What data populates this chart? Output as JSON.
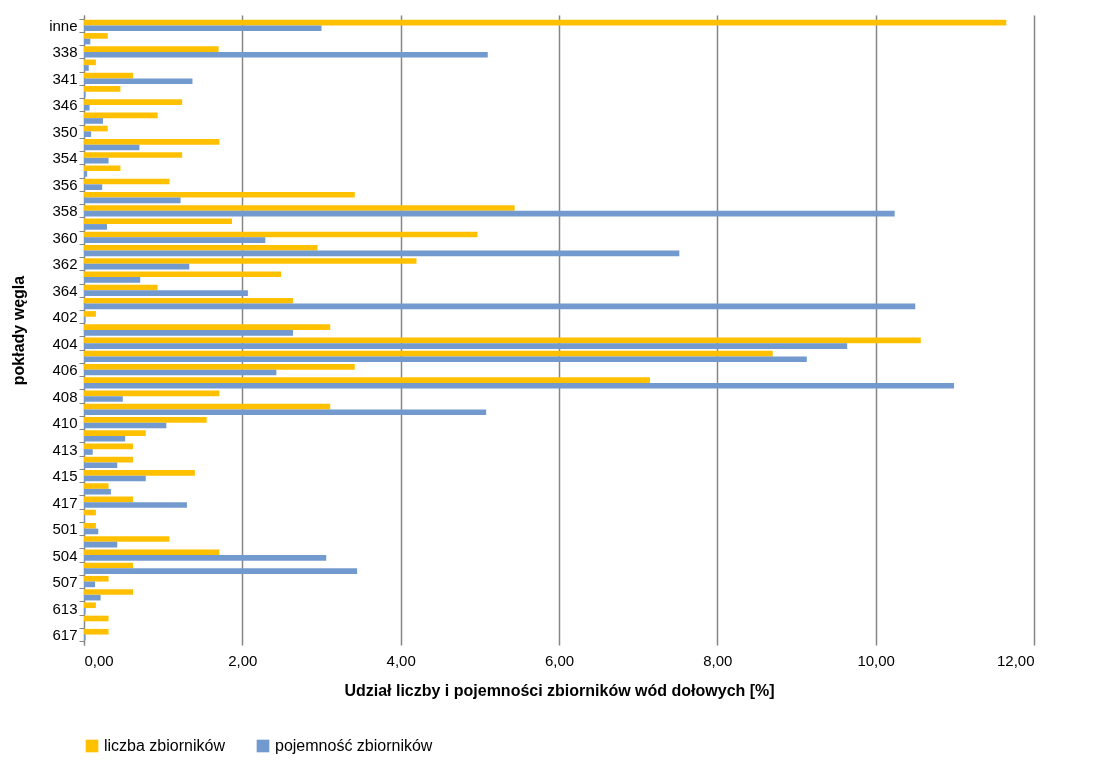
{
  "chart_data": {
    "type": "bar",
    "orientation": "horizontal",
    "xlabel": "Udział liczby i pojemności zbiorników wód dołowych [%]",
    "ylabel": "pokłady węgla",
    "categories": [
      "inne",
      null,
      "338",
      null,
      "341",
      null,
      "346",
      null,
      "350",
      null,
      "354",
      null,
      "356",
      null,
      "358",
      null,
      "360",
      null,
      "362",
      null,
      "364",
      null,
      "402",
      null,
      "404",
      null,
      "406",
      null,
      "408",
      null,
      "410",
      null,
      "413",
      null,
      "415",
      null,
      "417",
      null,
      "501",
      null,
      "504",
      null,
      "507",
      null,
      "613",
      null,
      "617"
    ],
    "series": [
      {
        "name": "liczba zbiorników",
        "color": "#ffc000",
        "values": [
          11.65,
          0.3,
          1.7,
          0.15,
          0.62,
          0.46,
          1.24,
          0.93,
          0.3,
          1.71,
          1.24,
          0.46,
          1.08,
          3.42,
          5.44,
          1.87,
          4.97,
          2.95,
          4.2,
          2.49,
          0.93,
          2.64,
          0.15,
          3.11,
          10.57,
          8.7,
          3.42,
          7.15,
          1.71,
          3.11,
          1.55,
          0.78,
          0.62,
          0.62,
          1.4,
          0.31,
          0.62,
          0.15,
          0.15,
          1.08,
          1.71,
          0.62,
          0.31,
          0.62,
          0.15,
          0.31,
          0.31
        ]
      },
      {
        "name": "pojemność zbiorników",
        "color": "#729acf",
        "values": [
          3.0,
          0.08,
          5.1,
          0.06,
          1.37,
          0.02,
          0.07,
          0.24,
          0.09,
          0.7,
          0.31,
          0.04,
          0.23,
          1.22,
          10.24,
          0.29,
          2.29,
          7.52,
          1.33,
          0.71,
          2.07,
          10.5,
          0.02,
          2.64,
          9.64,
          9.13,
          2.43,
          10.99,
          0.49,
          5.08,
          1.04,
          0.52,
          0.11,
          0.42,
          0.78,
          0.34,
          1.3,
          0.01,
          0.18,
          0.42,
          3.06,
          3.45,
          0.14,
          0.21,
          0.02,
          0,
          0.02
        ]
      }
    ],
    "xlim": [
      0,
      12
    ],
    "xticks": [
      {
        "value": 0,
        "label": "0,00"
      },
      {
        "value": 2,
        "label": "2,00"
      },
      {
        "value": 4,
        "label": "4,00"
      },
      {
        "value": 6,
        "label": "6,00"
      },
      {
        "value": 8,
        "label": "8,00"
      },
      {
        "value": 10,
        "label": "10,00"
      },
      {
        "value": 12,
        "label": "12,00"
      }
    ],
    "grid": "x",
    "legend": "bottom"
  }
}
